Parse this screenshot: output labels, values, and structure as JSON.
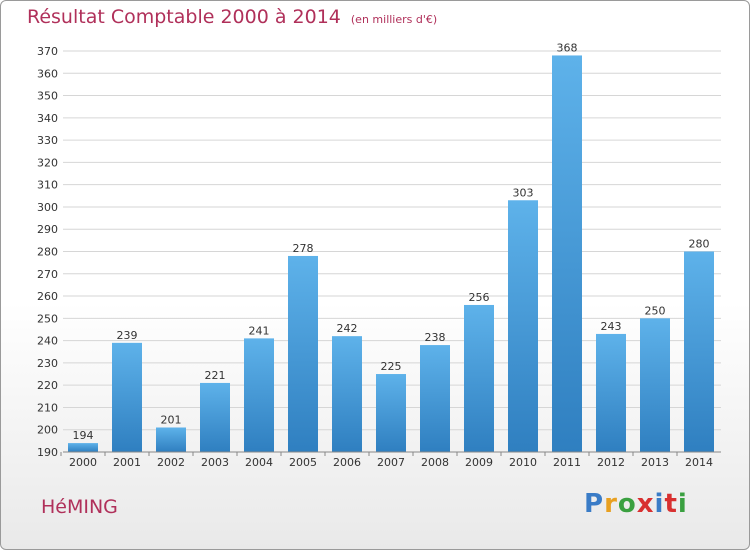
{
  "header": {
    "title": "Résultat Comptable 2000 à 2014",
    "subtitle": "(en milliers d'€)"
  },
  "footer": {
    "town": "HéMING",
    "logo": "Proxiti",
    "logo_colors": [
      "#3a7cc7",
      "#e8a020",
      "#3aa040",
      "#d83030",
      "#3a7cc7",
      "#d83030",
      "#3aa040"
    ]
  },
  "colors": {
    "title": "#b0305a",
    "bar_light": "#5eb2ea",
    "bar_dark": "#2f7fc0",
    "grid": "#d6d6d6"
  },
  "chart_data": {
    "type": "bar",
    "title": "Résultat Comptable 2000 à 2014",
    "subtitle": "(en milliers d'€)",
    "categories": [
      "2000",
      "2001",
      "2002",
      "2003",
      "2004",
      "2005",
      "2006",
      "2007",
      "2008",
      "2009",
      "2010",
      "2011",
      "2012",
      "2013",
      "2014"
    ],
    "values": [
      194,
      239,
      201,
      221,
      241,
      278,
      242,
      225,
      238,
      256,
      303,
      368,
      243,
      250,
      280
    ],
    "ylim": [
      190,
      370
    ],
    "ytick_step": 10,
    "grid": true,
    "legend": "none"
  }
}
